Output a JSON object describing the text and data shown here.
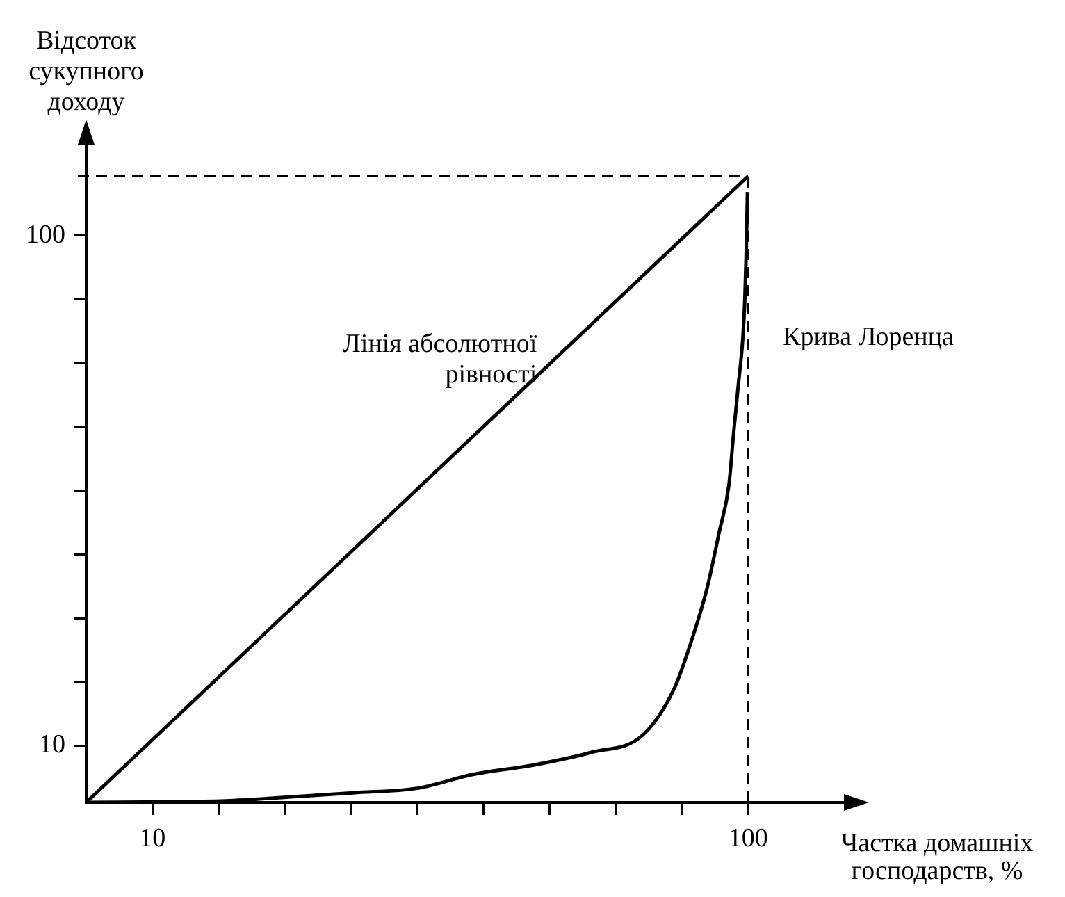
{
  "chart_data": {
    "type": "line",
    "xlabel": "Частка домашніх господарств, %",
    "ylabel": "Відсоток сукупного доходу",
    "xlim": [
      0,
      117
    ],
    "ylim": [
      0,
      119
    ],
    "xticks": [
      10,
      {
        "value": 20,
        "label": null
      },
      {
        "value": 30,
        "label": null
      },
      {
        "value": 40,
        "label": null
      },
      {
        "value": 50,
        "label": null
      },
      {
        "value": 60,
        "label": null
      },
      {
        "value": 70,
        "label": null
      },
      {
        "value": 80,
        "label": null
      },
      {
        "value": 90,
        "label": null
      },
      100
    ],
    "yticks": [
      10,
      {
        "value": 21.25,
        "label": null
      },
      {
        "value": 32.5,
        "label": null
      },
      {
        "value": 43.75,
        "label": null
      },
      {
        "value": 55,
        "label": null
      },
      {
        "value": 66.25,
        "label": null
      },
      {
        "value": 77.5,
        "label": null
      },
      {
        "value": 88.75,
        "label": null
      },
      100
    ],
    "series": [
      {
        "color": "#000000",
        "x": [
          0,
          12.8,
          21.7,
          31.4,
          40.3,
          50,
          58.3,
          67.6,
          76.2,
          84.1,
          88.8,
          91.3,
          93.8,
          95.6,
          97.1,
          97.8,
          98.5,
          99.2,
          99.5,
          99.7,
          99.9
        ],
        "values": [
          0,
          0.1,
          0.3,
          1,
          1.7,
          2.5,
          4.9,
          6.6,
          8.8,
          11.9,
          20,
          28,
          37.8,
          47.5,
          56,
          65,
          73.4,
          81.9,
          88.6,
          96.3,
          107.7
        ]
      },
      {
        "color": "#000000",
        "x": [
          0,
          100
        ],
        "values": [
          0,
          110.5
        ]
      }
    ],
    "ref_lines": [
      {
        "axis": "x",
        "value": 100,
        "line_style": "dashed"
      },
      {
        "axis": "y",
        "value": 110.5,
        "line_style": "dashed"
      }
    ],
    "annotations": [
      {
        "text": "Лінія абсолютної рівності",
        "x": 70.6,
        "y": 78
      },
      {
        "text": "Крива Лоренца",
        "x": 100,
        "y": 82
      }
    ],
    "grid": false,
    "legend": false,
    "marker": "none",
    "line_style": "solid"
  }
}
